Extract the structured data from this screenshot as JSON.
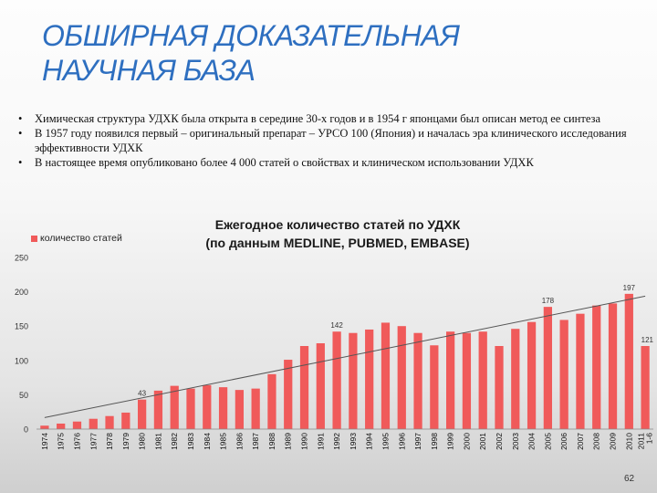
{
  "slide": {
    "title_line1": "ОБШИРНАЯ ДОКАЗАТЕЛЬНАЯ",
    "title_line2": "НАУЧНАЯ  БАЗА",
    "bullets": [
      "Химическая структура  УДХК была открыта в середине 30-х годов и в 1954 г японцами был описан метод ее синтеза",
      "В 1957 году появился первый – оригинальный препарат – УРСО 100 (Япония) и началась эра клинического исследования эффективности УДХК",
      "В настоящее время опубликовано более 4 000 статей о свойствах и клиническом использовании УДХК"
    ],
    "bullet_symbol": "•",
    "page_number": "62"
  },
  "chart_data": {
    "type": "bar",
    "title_line1": "Ежегодное количество статей по УДХК",
    "title_line2": "(по данным MEDLINE, PUBMED, EMBASE)",
    "legend": "количество статей",
    "legend_position": "top-left",
    "bar_color": "#f05a5a",
    "trendline_color": "#555555",
    "ylim": [
      0,
      250
    ],
    "yticks": [
      0,
      50,
      100,
      150,
      200,
      250
    ],
    "grid": false,
    "categories": [
      "1974",
      "1975",
      "1976",
      "1977",
      "1978",
      "1979",
      "1980",
      "1981",
      "1982",
      "1983",
      "1984",
      "1985",
      "1986",
      "1987",
      "1988",
      "1989",
      "1990",
      "1991",
      "1992",
      "1993",
      "1994",
      "1995",
      "1996",
      "1997",
      "1998",
      "1999",
      "2000",
      "2001",
      "2002",
      "2003",
      "2004",
      "2005",
      "2006",
      "2007",
      "2008",
      "2009",
      "2010",
      "2011 1-6"
    ],
    "values": [
      5,
      8,
      11,
      15,
      19,
      24,
      43,
      56,
      63,
      59,
      64,
      61,
      57,
      59,
      80,
      101,
      121,
      125,
      142,
      140,
      145,
      155,
      150,
      140,
      122,
      142,
      140,
      142,
      121,
      146,
      156,
      178,
      159,
      168,
      180,
      183,
      197,
      121
    ],
    "data_labels": [
      {
        "index": 6,
        "text": "43"
      },
      {
        "index": 18,
        "text": "142"
      },
      {
        "index": 31,
        "text": "178"
      },
      {
        "index": 36,
        "text": "197"
      },
      {
        "index": 37,
        "text": "121"
      }
    ]
  }
}
